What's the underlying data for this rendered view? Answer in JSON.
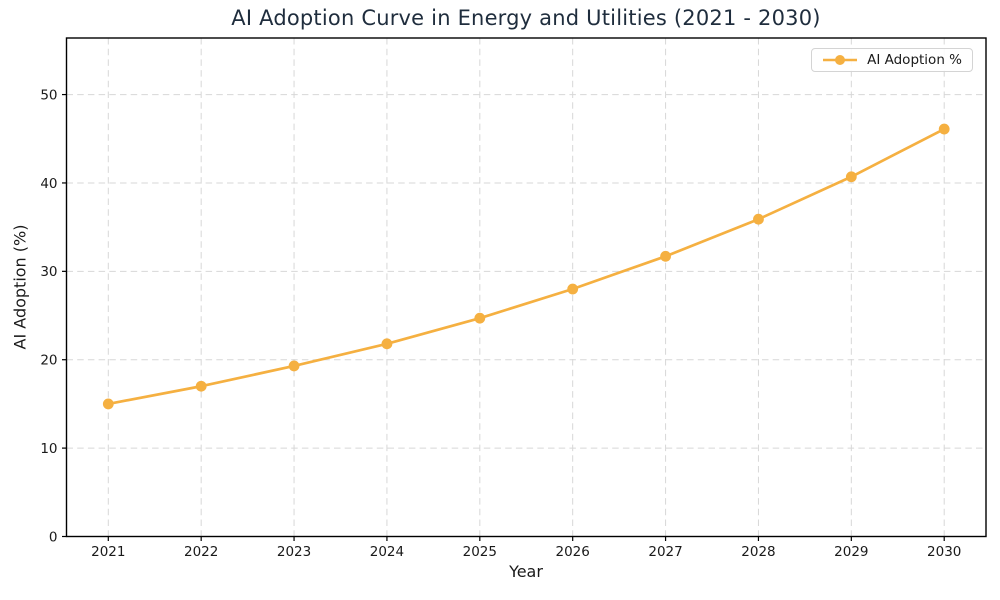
{
  "chart_data": {
    "type": "line",
    "title": "AI Adoption Curve in Energy and Utilities (2021 - 2030)",
    "xlabel": "Year",
    "ylabel": "AI Adoption (%)",
    "x": [
      2021,
      2022,
      2023,
      2024,
      2025,
      2026,
      2027,
      2028,
      2029,
      2030
    ],
    "series": [
      {
        "name": "AI Adoption %",
        "values": [
          15.0,
          17.0,
          19.3,
          21.8,
          24.7,
          28.0,
          31.7,
          35.9,
          40.7,
          46.1
        ],
        "color": "#f5b041",
        "marker": "circle",
        "line_width": 2.7,
        "marker_radius": 5.4
      }
    ],
    "xticks": [
      2021,
      2022,
      2023,
      2024,
      2025,
      2026,
      2027,
      2028,
      2029,
      2030
    ],
    "yticks": [
      0,
      10,
      20,
      30,
      40,
      50
    ],
    "xlim": [
      2020.55,
      2030.45
    ],
    "ylim": [
      0,
      56.4
    ],
    "grid": true,
    "grid_style": "dashed",
    "legend": {
      "position": "upper right",
      "entries": [
        "AI Adoption %"
      ]
    }
  },
  "colors": {
    "accent": "#f5b041",
    "grid": "#d7d7d7",
    "spine": "#000000",
    "tick_text": "#1a1a1a",
    "title_text": "#1f2d3d",
    "background": "#ffffff",
    "legend_border": "#d4d4d4"
  }
}
